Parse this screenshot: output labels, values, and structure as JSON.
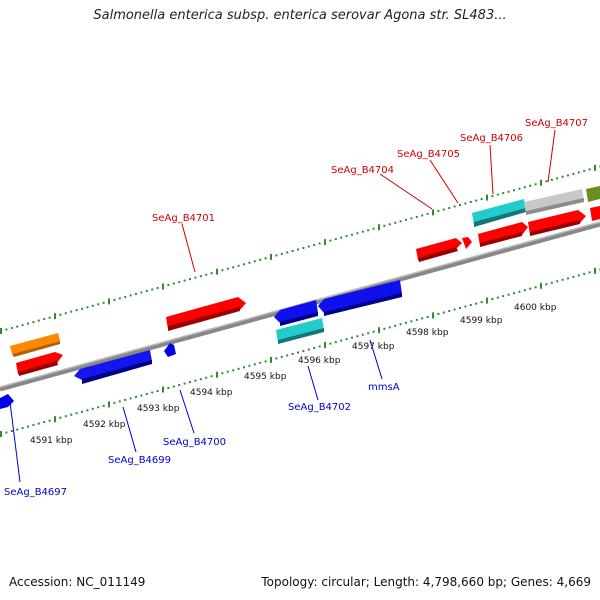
{
  "title": "Salmonella enterica subsp. enterica serovar Agona str. SL483...",
  "footer": {
    "accession": "Accession: NC_011149",
    "summary": "Topology: circular; Length: 4,798,660 bp; Genes: 4,669"
  },
  "colors": {
    "forward_gene": "#ff0000",
    "reverse_gene": "#0000ee",
    "cyan_gene": "#22cccc",
    "gray_gene": "#c8c8c8",
    "orange_gene": "#ff8800",
    "olive_gene": "#6b8e23",
    "backbone": "#808080",
    "tick": "#2e8b2e",
    "forward_label": "#cc0000",
    "reverse_label": "#0000cc"
  },
  "scale_labels": [
    "4591 kbp",
    "4592 kbp",
    "4593 kbp",
    "4594 kbp",
    "4595 kbp",
    "4596 kbp",
    "4597 kbp",
    "4598 kbp",
    "4599 kbp",
    "4600 kbp"
  ],
  "forward_labels": [
    "SeAg_B4701",
    "SeAg_B4704",
    "SeAg_B4705",
    "SeAg_B4706",
    "SeAg_B4707"
  ],
  "reverse_labels": [
    "SeAg_B4697",
    "SeAg_B4699",
    "SeAg_B4700",
    "SeAg_B4702",
    "mmsA"
  ]
}
